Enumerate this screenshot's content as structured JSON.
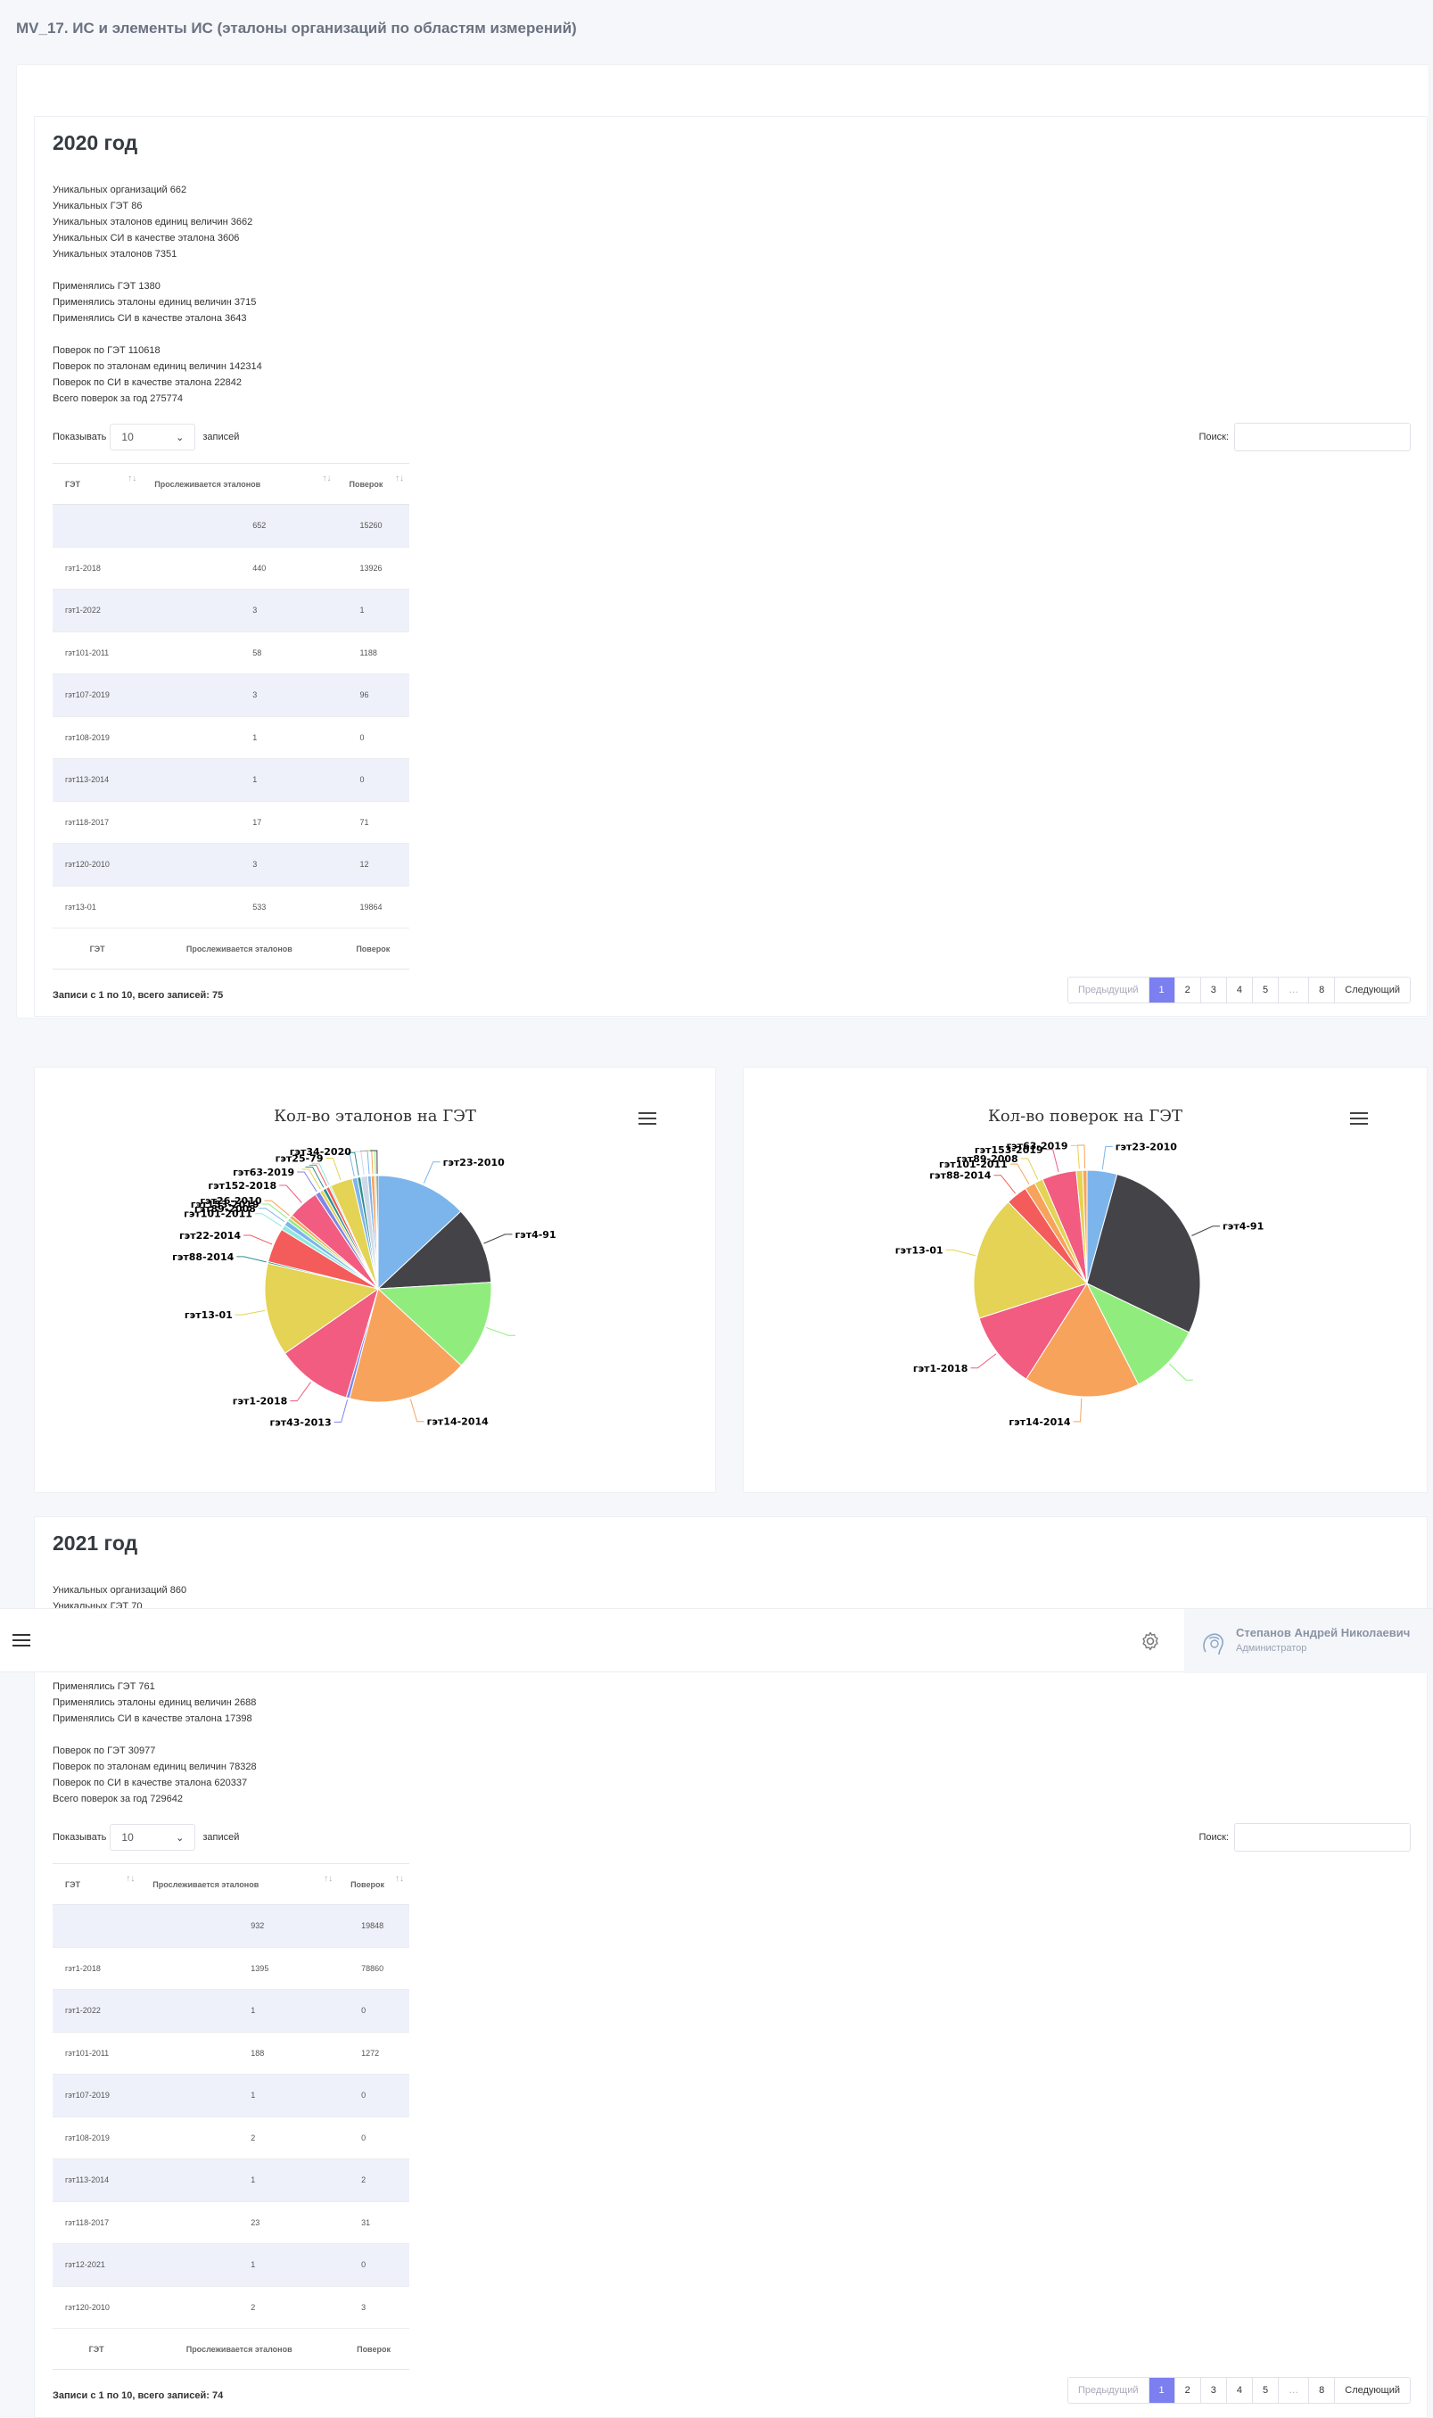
{
  "page": {
    "title": "MV_17. ИС и элементы ИС (эталоны организаций по областям измерений)"
  },
  "topbar": {
    "user_name": "Степанов Андрей Николаевич",
    "user_role": "Администратор"
  },
  "common": {
    "show_label": "Показывать",
    "entries_label": "записей",
    "search_label": "Поиск:",
    "col_get": "ГЭТ",
    "col_tracked": "Прослеживается эталонов",
    "col_checks": "Поверок",
    "prev": "Предыдущий",
    "next": "Следующий",
    "ellipsis": "…"
  },
  "y2020": {
    "title": "2020 год",
    "stats": [
      "Уникальных организаций 662",
      "Уникальных ГЭТ 86",
      "Уникальных эталонов единиц величин 3662",
      "Уникальных СИ в качестве эталона 3606",
      "Уникальных эталонов 7351"
    ],
    "applied": [
      "Применялись ГЭТ 1380",
      "Применялись эталоны единиц величин 3715",
      "Применялись СИ в качестве эталона 3643"
    ],
    "checks": [
      "Поверок по ГЭТ 110618",
      "Поверок по эталонам единиц величин 142314",
      "Поверок по СИ в качестве эталона 22842",
      "Всего поверок за год 275774"
    ],
    "page_len": "10",
    "rows": [
      [
        "",
        "652",
        "15260"
      ],
      [
        "гэт1-2018",
        "440",
        "13926"
      ],
      [
        "гэт1-2022",
        "3",
        "1"
      ],
      [
        "гэт101-2011",
        "58",
        "1188"
      ],
      [
        "гэт107-2019",
        "3",
        "96"
      ],
      [
        "гэт108-2019",
        "1",
        "0"
      ],
      [
        "гэт113-2014",
        "1",
        "0"
      ],
      [
        "гэт118-2017",
        "17",
        "71"
      ],
      [
        "гэт120-2010",
        "3",
        "12"
      ],
      [
        "гэт13-01",
        "533",
        "19864"
      ]
    ],
    "info": "Записи с 1 по 10, всего записей: 75",
    "pages": [
      "1",
      "2",
      "3",
      "4",
      "5",
      "8"
    ]
  },
  "y2021": {
    "title": "2021 год",
    "stats": [
      "Уникальных организаций 860",
      "Уникальных ГЭТ 70"
    ],
    "applied": [
      "Применялись ГЭТ 761",
      "Применялись эталоны единиц величин 2688",
      "Применялись СИ в качестве эталона 17398"
    ],
    "checks": [
      "Поверок по ГЭТ 30977",
      "Поверок по эталонам единиц величин 78328",
      "Поверок по СИ в качестве эталона 620337",
      "Всего поверок за год 729642"
    ],
    "page_len": "10",
    "rows": [
      [
        "",
        "932",
        "19848"
      ],
      [
        "гэт1-2018",
        "1395",
        "78860"
      ],
      [
        "гэт1-2022",
        "1",
        "0"
      ],
      [
        "гэт101-2011",
        "188",
        "1272"
      ],
      [
        "гэт107-2019",
        "1",
        "0"
      ],
      [
        "гэт108-2019",
        "2",
        "0"
      ],
      [
        "гэт113-2014",
        "1",
        "2"
      ],
      [
        "гэт118-2017",
        "23",
        "31"
      ],
      [
        "гэт12-2021",
        "1",
        "0"
      ],
      [
        "гэт120-2010",
        "2",
        "3"
      ]
    ],
    "info": "Записи с 1 по 10, всего записей: 74",
    "pages": [
      "1",
      "2",
      "3",
      "4",
      "5",
      "8"
    ]
  },
  "chart_data": [
    {
      "type": "pie",
      "title": "Кол-во эталонов на ГЭТ",
      "slices": [
        {
          "label": "гэт23-2010",
          "value": 53,
          "color": "#7cb5ec"
        },
        {
          "label": "гэт4-91",
          "value": 45,
          "color": "#434348"
        },
        {
          "label": "",
          "value": 52,
          "color": "#90ed7d"
        },
        {
          "label": "гэт14-2014",
          "value": 70,
          "color": "#f7a35c"
        },
        {
          "label": "гэт43-2013",
          "value": 2,
          "color": "#8085e9"
        },
        {
          "label": "гэт1-2018",
          "value": 44,
          "color": "#f15c80"
        },
        {
          "label": "гэт13-01",
          "value": 54,
          "color": "#e4d354"
        },
        {
          "label": "гэт88-2014",
          "value": 1,
          "color": "#2b908f"
        },
        {
          "label": "гэт22-2014",
          "value": 20,
          "color": "#f45b5b"
        },
        {
          "label": "гэт101-2011",
          "value": 3,
          "color": "#91e8e1"
        },
        {
          "label": "гэт89-2008",
          "value": 3,
          "color": "#7cb5ec"
        },
        {
          "label": "гэт153-2019",
          "value": 2,
          "color": "#90ed7d"
        },
        {
          "label": "гэт26-2010",
          "value": 2,
          "color": "#f7a35c"
        },
        {
          "label": "гэт152-2018",
          "value": 18,
          "color": "#f15c80"
        },
        {
          "label": "гэт63-2019",
          "value": 3,
          "color": "#8085e9"
        },
        {
          "label": "",
          "value": 2,
          "color": "#e4d354"
        },
        {
          "label": "",
          "value": 2,
          "color": "#2b908f"
        },
        {
          "label": "",
          "value": 2,
          "color": "#f45b5b"
        },
        {
          "label": "",
          "value": 1,
          "color": "#91e8e1"
        },
        {
          "label": "гэт25-79",
          "value": 13,
          "color": "#e4d354"
        },
        {
          "label": "",
          "value": 3,
          "color": "#7cb5ec"
        },
        {
          "label": "",
          "value": 2,
          "color": "#2b908f"
        },
        {
          "label": "гэт34-2020",
          "value": 4,
          "color": "#cfd8e6"
        },
        {
          "label": "",
          "value": 2,
          "color": "#7cb5ec"
        },
        {
          "label": "",
          "value": 2,
          "color": "#f7a35c"
        },
        {
          "label": "",
          "value": 1,
          "color": "#90ed7d"
        },
        {
          "label": "",
          "value": 1,
          "color": "#434348"
        }
      ]
    },
    {
      "type": "pie",
      "title": "Кол-во поверок на ГЭТ",
      "slices": [
        {
          "label": "гэт23-2010",
          "value": 14,
          "color": "#7cb5ec"
        },
        {
          "label": "гэт4-91",
          "value": 91,
          "color": "#434348"
        },
        {
          "label": "",
          "value": 34,
          "color": "#90ed7d"
        },
        {
          "label": "гэт14-2014",
          "value": 54,
          "color": "#f7a35c"
        },
        {
          "label": "гэт1-2018",
          "value": 36,
          "color": "#f15c80"
        },
        {
          "label": "гэт13-01",
          "value": 58,
          "color": "#e4d354"
        },
        {
          "label": "гэт88-2014",
          "value": 10,
          "color": "#f45b5b"
        },
        {
          "label": "гэт101-2011",
          "value": 5,
          "color": "#f7a35c"
        },
        {
          "label": "гэт89-2008",
          "value": 4,
          "color": "#e4d354"
        },
        {
          "label": "гэт153-2019",
          "value": 16,
          "color": "#f15c80"
        },
        {
          "label": "гэт63-2019",
          "value": 3,
          "color": "#e4d354"
        },
        {
          "label": "",
          "value": 2,
          "color": "#f7a35c"
        }
      ]
    }
  ]
}
